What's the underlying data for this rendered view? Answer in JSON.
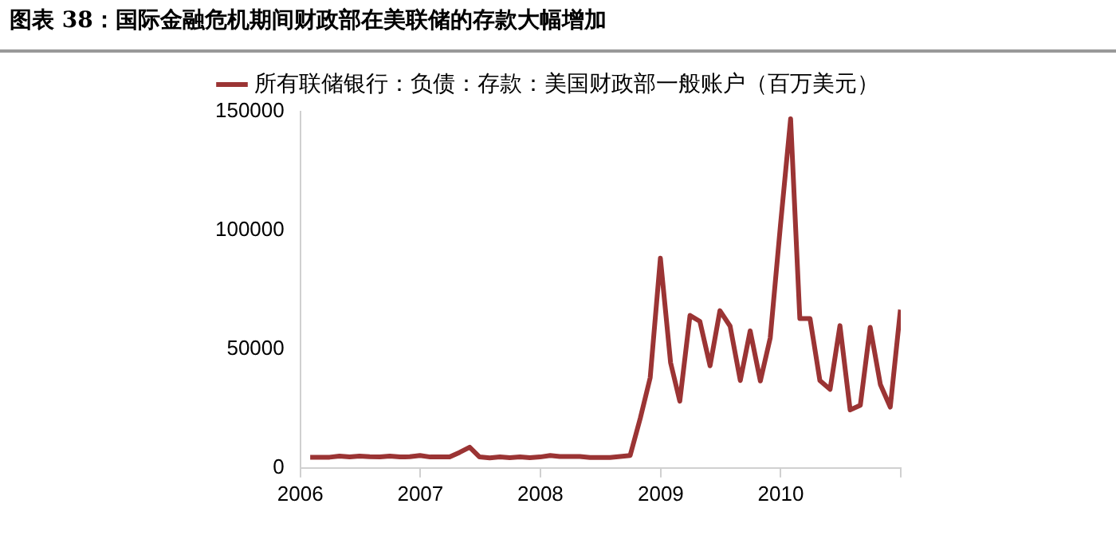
{
  "chart_data": {
    "type": "line",
    "title": "图表 38：国际金融危机期间财政部在美联储的存款大幅增加",
    "x": [
      "2006-01-31",
      "2006-02-28",
      "2006-03-31",
      "2006-04-30",
      "2006-05-31",
      "2006-06-30",
      "2006-07-31",
      "2006-08-31",
      "2006-09-30",
      "2006-10-31",
      "2006-11-30",
      "2006-12-31",
      "2007-01-31",
      "2007-02-28",
      "2007-03-31",
      "2007-04-30",
      "2007-05-31",
      "2007-06-30",
      "2007-07-31",
      "2007-08-31",
      "2007-09-30",
      "2007-10-31",
      "2007-11-30",
      "2007-12-31",
      "2008-01-31",
      "2008-02-29",
      "2008-03-31",
      "2008-04-30",
      "2008-05-31",
      "2008-06-30",
      "2008-07-31",
      "2008-08-31",
      "2008-09-30",
      "2008-10-31",
      "2008-11-30",
      "2008-12-31",
      "2009-01-31",
      "2009-02-28",
      "2009-03-31",
      "2009-04-30",
      "2009-05-31",
      "2009-06-30",
      "2009-07-31",
      "2009-08-31",
      "2009-09-30",
      "2009-10-31",
      "2009-11-30",
      "2009-12-31",
      "2010-01-31",
      "2010-02-28",
      "2010-03-31",
      "2010-04-30",
      "2010-05-31",
      "2010-06-30",
      "2010-07-31",
      "2010-08-31",
      "2010-09-30",
      "2010-10-31",
      "2010-11-30",
      "2010-12-31"
    ],
    "series": [
      {
        "name": "所有联储银行：负债：存款：美国财政部一般账户（百万美元）",
        "color": "#9b3434",
        "values": [
          4500,
          4500,
          4500,
          5000,
          4600,
          5000,
          4700,
          4600,
          5000,
          4600,
          4700,
          5200,
          4600,
          4600,
          4600,
          6500,
          8700,
          4600,
          4200,
          4600,
          4300,
          4600,
          4300,
          4600,
          5200,
          4800,
          4800,
          4800,
          4400,
          4400,
          4400,
          4800,
          5200,
          21000,
          38000,
          88300,
          44300,
          28100,
          64200,
          61700,
          43000,
          66200,
          59700,
          36800,
          57700,
          36600,
          54700,
          102000,
          147000,
          62900,
          62900,
          36800,
          33100,
          59900,
          24400,
          26400,
          59200,
          35100,
          25600,
          66600
        ]
      }
    ],
    "xlim": [
      "2006-01-01",
      "2011-01-01"
    ],
    "xticks": [
      "2006",
      "2007",
      "2008",
      "2009",
      "2010",
      {
        "value": "2011",
        "label": null
      }
    ],
    "ylim": [
      0,
      150000
    ],
    "yticks": [
      0,
      50000,
      100000,
      150000
    ],
    "grid": false,
    "legend": "top",
    "marker": "none",
    "line_style": "solid"
  }
}
